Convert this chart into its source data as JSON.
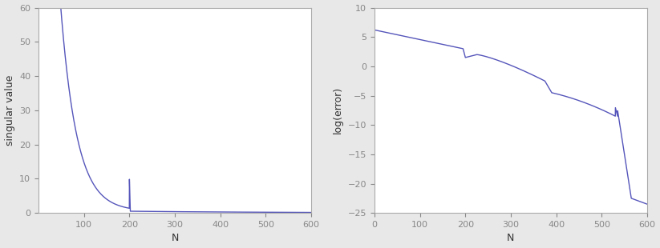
{
  "left": {
    "xlabel": "N",
    "ylabel": "singular value",
    "xlim": [
      0,
      600
    ],
    "ylim": [
      0,
      60
    ],
    "xticks": [
      100,
      200,
      300,
      400,
      500,
      600
    ],
    "yticks": [
      0,
      10,
      20,
      30,
      40,
      50,
      60
    ],
    "line_color": "#5555bb",
    "line_width": 1.0
  },
  "right": {
    "xlabel": "N",
    "ylabel": "log(error)",
    "xlim": [
      0,
      600
    ],
    "ylim": [
      -25,
      10
    ],
    "xticks": [
      0,
      100,
      200,
      300,
      400,
      500,
      600
    ],
    "yticks": [
      -25,
      -20,
      -15,
      -10,
      -5,
      0,
      5,
      10
    ],
    "line_color": "#5555bb",
    "line_width": 1.0
  },
  "fig_bg": "#e8e8e8",
  "ax_bg": "#ffffff",
  "tick_label_fontsize": 8,
  "axis_label_fontsize": 9,
  "spine_color": "#aaaaaa",
  "tick_color": "#888888"
}
